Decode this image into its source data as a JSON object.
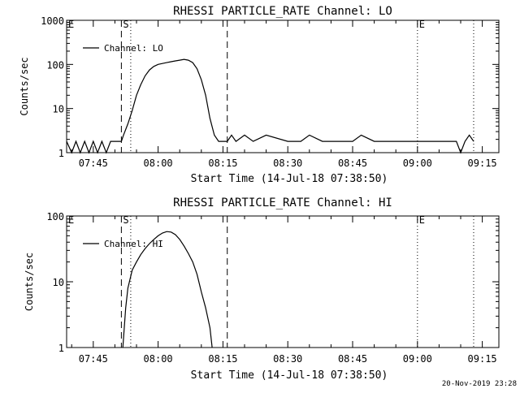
{
  "chart_data": [
    {
      "type": "line",
      "title": "RHESSI PARTICLE_RATE Channel: LO",
      "xlabel": "Start Time (14-Jul-18 07:38:50)",
      "ylabel": "Counts/sec",
      "y_scale": "log",
      "ylim": [
        1,
        1000
      ],
      "xlim": [
        "07:38:50",
        "09:18:50"
      ],
      "x_ticks": [
        "07:45",
        "08:00",
        "08:15",
        "08:30",
        "08:45",
        "09:00",
        "09:15"
      ],
      "y_ticks": [
        "1",
        "10",
        "100",
        "1000"
      ],
      "legend": {
        "label": "Channel: LO",
        "position": "top-left"
      },
      "markers": [
        {
          "label": "E",
          "time": "07:38:50",
          "style": "dotted"
        },
        {
          "label": "S",
          "time": "07:51:30",
          "style": "dashed"
        },
        {
          "label": "",
          "time": "07:53:40",
          "style": "dotted"
        },
        {
          "label": "",
          "time": "08:16:00",
          "style": "dashed"
        },
        {
          "label": "E",
          "time": "09:00:00",
          "style": "dotted"
        },
        {
          "label": "",
          "time": "09:13:00",
          "style": "dotted"
        }
      ],
      "series": [
        {
          "name": "Channel: LO",
          "x": [
            "07:38:50",
            "07:40:00",
            "07:41:00",
            "07:42:00",
            "07:43:00",
            "07:44:00",
            "07:45:00",
            "07:46:00",
            "07:47:00",
            "07:48:00",
            "07:49:00",
            "07:50:00",
            "07:51:30",
            "07:52:00",
            "07:53:00",
            "07:54:00",
            "07:55:00",
            "07:56:00",
            "07:57:00",
            "07:58:00",
            "07:59:00",
            "08:00:00",
            "08:01:00",
            "08:02:00",
            "08:03:00",
            "08:04:00",
            "08:05:00",
            "08:06:00",
            "08:07:00",
            "08:08:00",
            "08:09:00",
            "08:10:00",
            "08:11:00",
            "08:12:00",
            "08:13:00",
            "08:14:00",
            "08:15:00",
            "08:16:00",
            "08:17:00",
            "08:18:00",
            "08:20:00",
            "08:22:00",
            "08:25:00",
            "08:30:00",
            "08:33:00",
            "08:35:00",
            "08:38:00",
            "08:40:00",
            "08:45:00",
            "08:47:00",
            "08:50:00",
            "08:55:00",
            "09:00:00",
            "09:04:00",
            "09:08:00",
            "09:09:00",
            "09:10:00",
            "09:11:00",
            "09:12:00",
            "09:13:00"
          ],
          "y": [
            1.8,
            1,
            1.8,
            1,
            1.8,
            1,
            1.8,
            1,
            1.8,
            1,
            1.8,
            1.8,
            1.8,
            2.5,
            4.5,
            9,
            20,
            35,
            55,
            75,
            90,
            100,
            105,
            110,
            115,
            120,
            125,
            130,
            125,
            110,
            80,
            45,
            20,
            6,
            2.5,
            1.8,
            1.8,
            1.8,
            2.5,
            1.8,
            2.5,
            1.8,
            2.5,
            1.8,
            1.8,
            2.5,
            1.8,
            1.8,
            1.8,
            2.5,
            1.8,
            1.8,
            1.8,
            1.8,
            1.8,
            1.8,
            1,
            1.8,
            2.5,
            1.8
          ]
        }
      ]
    },
    {
      "type": "line",
      "title": "RHESSI PARTICLE_RATE Channel: HI",
      "xlabel": "Start Time (14-Jul-18 07:38:50)",
      "ylabel": "Counts/sec",
      "y_scale": "log",
      "ylim": [
        1,
        100
      ],
      "xlim": [
        "07:38:50",
        "09:18:50"
      ],
      "x_ticks": [
        "07:45",
        "08:00",
        "08:15",
        "08:30",
        "08:45",
        "09:00",
        "09:15"
      ],
      "y_ticks": [
        "1",
        "10",
        "100"
      ],
      "legend": {
        "label": "Channel: HI",
        "position": "top-left"
      },
      "markers": [
        {
          "label": "E",
          "time": "07:38:50",
          "style": "dotted"
        },
        {
          "label": "S",
          "time": "07:51:30",
          "style": "dashed"
        },
        {
          "label": "",
          "time": "07:53:40",
          "style": "dotted"
        },
        {
          "label": "",
          "time": "08:16:00",
          "style": "dashed"
        },
        {
          "label": "E",
          "time": "09:00:00",
          "style": "dotted"
        },
        {
          "label": "",
          "time": "09:13:00",
          "style": "dotted"
        }
      ],
      "series": [
        {
          "name": "Channel: HI",
          "x": [
            "07:51:50",
            "07:52:30",
            "07:53:00",
            "07:54:00",
            "07:55:00",
            "07:56:00",
            "07:57:00",
            "07:58:00",
            "07:59:00",
            "08:00:00",
            "08:01:00",
            "08:02:00",
            "08:03:00",
            "08:04:00",
            "08:05:00",
            "08:06:00",
            "08:07:00",
            "08:08:00",
            "08:09:00",
            "08:10:00",
            "08:11:00",
            "08:12:00",
            "08:12:30"
          ],
          "y": [
            1,
            4,
            8,
            15,
            20,
            26,
            32,
            38,
            44,
            50,
            55,
            58,
            57,
            52,
            44,
            35,
            27,
            20,
            13,
            7,
            4,
            2,
            1
          ]
        }
      ]
    }
  ],
  "footer": {
    "timestamp": "20-Nov-2019 23:28"
  }
}
